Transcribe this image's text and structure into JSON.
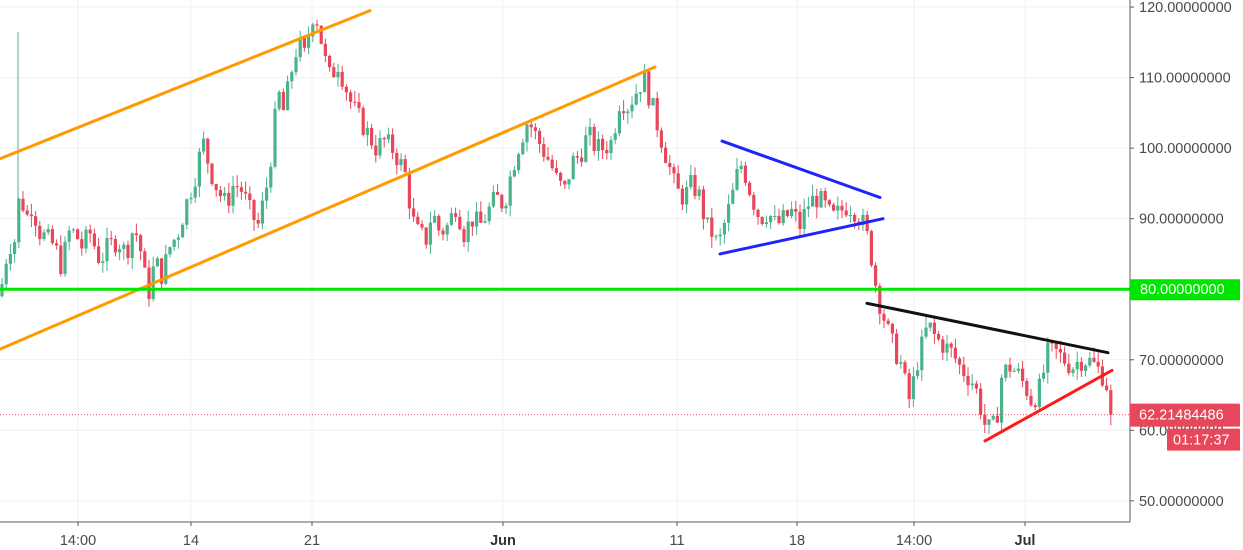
{
  "chart_data": {
    "type": "candlestick",
    "y_axis": {
      "ticks": [
        {
          "value": 120,
          "label": "120.00000000"
        },
        {
          "value": 110,
          "label": "110.00000000"
        },
        {
          "value": 100,
          "label": "100.00000000"
        },
        {
          "value": 90,
          "label": "90.00000000"
        },
        {
          "value": 70,
          "label": "70.00000000"
        },
        {
          "value": 60,
          "label": "60.00000000"
        },
        {
          "value": 50,
          "label": "50.00000000"
        }
      ],
      "ylim": [
        47,
        121
      ]
    },
    "x_axis": {
      "ticks": [
        {
          "label": "14:00",
          "bold": false
        },
        {
          "label": "14",
          "bold": false
        },
        {
          "label": "21",
          "bold": false
        },
        {
          "label": "Jun",
          "bold": true
        },
        {
          "label": "11",
          "bold": false
        },
        {
          "label": "18",
          "bold": false
        },
        {
          "label": "14:00",
          "bold": false
        },
        {
          "label": "Jul",
          "bold": true
        }
      ]
    },
    "support_level": {
      "value": 80,
      "label": "80.00000000",
      "color": "#00e600"
    },
    "current_price": {
      "value": 62.21484486,
      "label": "62.21484486",
      "countdown": "01:17:37",
      "color": "#e8475b"
    },
    "series_colors": {
      "up": "#4bb38a",
      "down": "#e8475b"
    },
    "trendlines": [
      {
        "name": "channel-upper",
        "color": "#ff9a00",
        "points": [
          [
            0,
            98.5
          ],
          [
            370,
            119.5
          ]
        ]
      },
      {
        "name": "channel-lower-a",
        "color": "#ff9a00",
        "points": [
          [
            0,
            71.5
          ],
          [
            410,
            96.5
          ]
        ]
      },
      {
        "name": "channel-lower-b",
        "color": "#ff9a00",
        "points": [
          [
            410,
            96.5
          ],
          [
            655,
            111.5
          ]
        ]
      },
      {
        "name": "triangle-upper",
        "color": "#1f24ff",
        "points": [
          [
            722,
            101
          ],
          [
            880,
            93
          ]
        ]
      },
      {
        "name": "triangle-lower",
        "color": "#1f24ff",
        "points": [
          [
            720,
            85
          ],
          [
            883,
            90
          ]
        ]
      },
      {
        "name": "resistance-line",
        "color": "#111111",
        "points": [
          [
            867,
            78
          ],
          [
            1108,
            71
          ]
        ]
      },
      {
        "name": "support-line",
        "color": "#ff1a1a",
        "points": [
          [
            985,
            58.5
          ],
          [
            1112,
            68.5
          ]
        ]
      }
    ],
    "close_path": [
      [
        0,
        79
      ],
      [
        8,
        86
      ],
      [
        15,
        87
      ],
      [
        20,
        94
      ],
      [
        26,
        90
      ],
      [
        32,
        92
      ],
      [
        40,
        88
      ],
      [
        48,
        87
      ],
      [
        55,
        86
      ],
      [
        62,
        83
      ],
      [
        68,
        88
      ],
      [
        75,
        88
      ],
      [
        82,
        86
      ],
      [
        90,
        88
      ],
      [
        100,
        84
      ],
      [
        108,
        86
      ],
      [
        118,
        87
      ],
      [
        126,
        85
      ],
      [
        134,
        89
      ],
      [
        140,
        86
      ],
      [
        148,
        79
      ],
      [
        155,
        84
      ],
      [
        162,
        82
      ],
      [
        170,
        86
      ],
      [
        178,
        88
      ],
      [
        186,
        92
      ],
      [
        195,
        96
      ],
      [
        203,
        101
      ],
      [
        210,
        97
      ],
      [
        218,
        94
      ],
      [
        226,
        92
      ],
      [
        234,
        95
      ],
      [
        242,
        94
      ],
      [
        250,
        91
      ],
      [
        258,
        89
      ],
      [
        266,
        94
      ],
      [
        272,
        100
      ],
      [
        278,
        108
      ],
      [
        284,
        105
      ],
      [
        290,
        110
      ],
      [
        298,
        115
      ],
      [
        305,
        113
      ],
      [
        312,
        119
      ],
      [
        318,
        118
      ],
      [
        324,
        113
      ],
      [
        330,
        110
      ],
      [
        338,
        112
      ],
      [
        345,
        109
      ],
      [
        352,
        106
      ],
      [
        360,
        104
      ],
      [
        368,
        102
      ],
      [
        376,
        100
      ],
      [
        384,
        101
      ],
      [
        392,
        100
      ],
      [
        400,
        98
      ],
      [
        406,
        96
      ],
      [
        412,
        90
      ],
      [
        418,
        88
      ],
      [
        426,
        87
      ],
      [
        432,
        91
      ],
      [
        440,
        88
      ],
      [
        448,
        89
      ],
      [
        456,
        92
      ],
      [
        464,
        88
      ],
      [
        472,
        90
      ],
      [
        480,
        89
      ],
      [
        488,
        91
      ],
      [
        496,
        93
      ],
      [
        504,
        92
      ],
      [
        512,
        97
      ],
      [
        520,
        101
      ],
      [
        528,
        104
      ],
      [
        535,
        102
      ],
      [
        542,
        100
      ],
      [
        550,
        98
      ],
      [
        558,
        95
      ],
      [
        565,
        94
      ],
      [
        572,
        98
      ],
      [
        580,
        99
      ],
      [
        588,
        102
      ],
      [
        596,
        100
      ],
      [
        604,
        100
      ],
      [
        612,
        101
      ],
      [
        620,
        107
      ],
      [
        628,
        106
      ],
      [
        636,
        108
      ],
      [
        644,
        110
      ],
      [
        652,
        106
      ],
      [
        660,
        102
      ],
      [
        668,
        98
      ],
      [
        676,
        94
      ],
      [
        684,
        93
      ],
      [
        692,
        95
      ],
      [
        700,
        93
      ],
      [
        706,
        89
      ],
      [
        712,
        88
      ],
      [
        718,
        86
      ],
      [
        724,
        89
      ],
      [
        732,
        93
      ],
      [
        740,
        98
      ],
      [
        746,
        96
      ],
      [
        752,
        93
      ],
      [
        760,
        90
      ],
      [
        768,
        91
      ],
      [
        776,
        89
      ],
      [
        784,
        90
      ],
      [
        792,
        91
      ],
      [
        800,
        89
      ],
      [
        808,
        92
      ],
      [
        816,
        93
      ],
      [
        824,
        92
      ],
      [
        832,
        90
      ],
      [
        840,
        91
      ],
      [
        848,
        92
      ],
      [
        856,
        91
      ],
      [
        864,
        89
      ],
      [
        870,
        86
      ],
      [
        874,
        82
      ],
      [
        878,
        79
      ],
      [
        884,
        76
      ],
      [
        890,
        73
      ],
      [
        896,
        71
      ],
      [
        902,
        69
      ],
      [
        906,
        66
      ],
      [
        910,
        64
      ],
      [
        916,
        69
      ],
      [
        922,
        72
      ],
      [
        928,
        75
      ],
      [
        936,
        73
      ],
      [
        944,
        72
      ],
      [
        952,
        71
      ],
      [
        960,
        69
      ],
      [
        966,
        68
      ],
      [
        972,
        67
      ],
      [
        978,
        65
      ],
      [
        984,
        61
      ],
      [
        990,
        60
      ],
      [
        996,
        61
      ],
      [
        1002,
        68
      ],
      [
        1010,
        69
      ],
      [
        1018,
        68
      ],
      [
        1026,
        66
      ],
      [
        1032,
        64
      ],
      [
        1040,
        66
      ],
      [
        1048,
        71
      ],
      [
        1056,
        71
      ],
      [
        1064,
        70
      ],
      [
        1072,
        69
      ],
      [
        1080,
        70
      ],
      [
        1088,
        70
      ],
      [
        1096,
        69
      ],
      [
        1102,
        68
      ],
      [
        1108,
        66
      ],
      [
        1113,
        62.2
      ]
    ]
  }
}
